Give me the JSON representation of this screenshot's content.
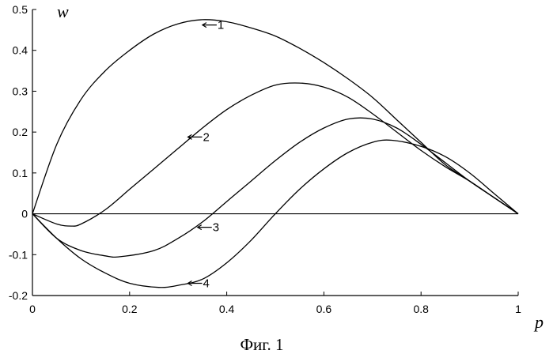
{
  "chart_data": {
    "type": "line",
    "title": "",
    "xlabel": "p",
    "ylabel": "w",
    "caption": "Фиг. 1",
    "xlim": [
      0,
      1
    ],
    "ylim": [
      -0.2,
      0.5
    ],
    "x_ticks": [
      "0",
      "0.2",
      "0.4",
      "0.6",
      "0.8",
      "1"
    ],
    "y_ticks": [
      "-0.2",
      "-0.1",
      "0",
      "0.1",
      "0.2",
      "0.3",
      "0.4",
      "0.5"
    ],
    "grid": false,
    "line_color": "#000000",
    "series": [
      {
        "name": "1",
        "x": [
          0,
          0.05,
          0.1,
          0.15,
          0.2,
          0.25,
          0.3,
          0.35,
          0.4,
          0.45,
          0.5,
          0.55,
          0.6,
          0.65,
          0.7,
          0.75,
          0.8,
          0.85,
          0.9,
          0.95,
          1
        ],
        "y": [
          0,
          0.17,
          0.28,
          0.35,
          0.4,
          0.44,
          0.465,
          0.475,
          0.47,
          0.455,
          0.435,
          0.405,
          0.37,
          0.33,
          0.285,
          0.23,
          0.175,
          0.12,
          0.08,
          0.04,
          0
        ]
      },
      {
        "name": "2",
        "x": [
          0,
          0.05,
          0.08,
          0.1,
          0.15,
          0.2,
          0.25,
          0.3,
          0.35,
          0.4,
          0.45,
          0.5,
          0.55,
          0.6,
          0.65,
          0.7,
          0.75,
          0.8,
          0.85,
          0.9,
          0.95,
          1
        ],
        "y": [
          0,
          -0.025,
          -0.03,
          -0.025,
          0.01,
          0.06,
          0.11,
          0.16,
          0.21,
          0.255,
          0.29,
          0.315,
          0.32,
          0.31,
          0.285,
          0.245,
          0.2,
          0.155,
          0.115,
          0.08,
          0.04,
          0
        ]
      },
      {
        "name": "3",
        "x": [
          0,
          0.05,
          0.1,
          0.15,
          0.18,
          0.25,
          0.3,
          0.35,
          0.4,
          0.45,
          0.5,
          0.55,
          0.6,
          0.65,
          0.7,
          0.75,
          0.8,
          0.85,
          0.9,
          0.95,
          1
        ],
        "y": [
          0,
          -0.06,
          -0.09,
          -0.103,
          -0.105,
          -0.09,
          -0.06,
          -0.02,
          0.03,
          0.08,
          0.13,
          0.175,
          0.21,
          0.232,
          0.232,
          0.21,
          0.17,
          0.125,
          0.08,
          0.04,
          0
        ]
      },
      {
        "name": "4",
        "x": [
          0,
          0.05,
          0.1,
          0.15,
          0.2,
          0.26,
          0.3,
          0.35,
          0.4,
          0.45,
          0.5,
          0.55,
          0.6,
          0.65,
          0.7,
          0.74,
          0.8,
          0.85,
          0.9,
          0.95,
          1
        ],
        "y": [
          0,
          -0.06,
          -0.11,
          -0.145,
          -0.17,
          -0.18,
          -0.175,
          -0.16,
          -0.12,
          -0.065,
          0,
          0.06,
          0.11,
          0.15,
          0.175,
          0.18,
          0.165,
          0.14,
          0.1,
          0.05,
          0
        ]
      }
    ],
    "series_labels": [
      {
        "text": "1",
        "x": 0.35,
        "y": 0.462
      },
      {
        "text": "2",
        "x": 0.32,
        "y": 0.188
      },
      {
        "text": "3",
        "x": 0.34,
        "y": -0.033
      },
      {
        "text": "4",
        "x": 0.32,
        "y": -0.17
      }
    ]
  }
}
